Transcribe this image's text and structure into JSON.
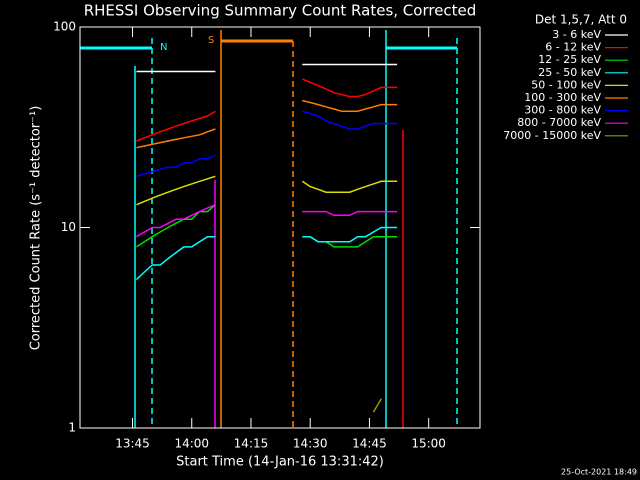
{
  "chart_data": {
    "type": "line",
    "title": "RHESSI Observing Summary Count Rates, Corrected",
    "x_label": "Start Time (14-Jan-16 13:31:42)",
    "y_label": "Corrected Count Rate (s⁻¹ detector⁻¹)",
    "legend_title": "Det 1,5,7, Att 0",
    "footer": "25-Oct-2021 18:49",
    "annotations": [
      "N",
      "S"
    ],
    "log_y": true,
    "xlim": [
      "13:31:42",
      "15:13"
    ],
    "xticks": [
      "13:45",
      "14:00",
      "14:15",
      "14:30",
      "14:45",
      "15:00"
    ],
    "ylim": [
      1,
      100
    ],
    "yticks": [
      1,
      10,
      100
    ],
    "x": [
      "13:46",
      "13:48",
      "13:50",
      "13:52",
      "13:54",
      "13:56",
      "13:58",
      "14:00",
      "14:02",
      "14:04",
      "14:06",
      "14:16",
      "14:28",
      "14:30",
      "14:32",
      "14:34",
      "14:36",
      "14:38",
      "14:40",
      "14:42",
      "14:44",
      "14:46",
      "14:48",
      "14:50",
      "14:52"
    ],
    "series": [
      {
        "name": "3 - 6 keV",
        "color": "#ffffff",
        "values": [
          60,
          60,
          60,
          60,
          60,
          60,
          60,
          60,
          60,
          60,
          60,
          null,
          65,
          65,
          65,
          65,
          65,
          65,
          65,
          65,
          65,
          65,
          65,
          65,
          65
        ]
      },
      {
        "name": "6 - 12 keV",
        "color": "#ff0000",
        "values": [
          27,
          28,
          29,
          30,
          31,
          32,
          33,
          34,
          35,
          36,
          38,
          null,
          55,
          53,
          51,
          49,
          47,
          46,
          45,
          45,
          46,
          48,
          50,
          50,
          50
        ]
      },
      {
        "name": "12 - 25 keV",
        "color": "#00dd00",
        "values": [
          8,
          8.5,
          9,
          9.5,
          10,
          10.5,
          11,
          11,
          12,
          12,
          13,
          null,
          9,
          9,
          8.5,
          8.5,
          8,
          8,
          8,
          8,
          8.5,
          9,
          9,
          9,
          9
        ]
      },
      {
        "name": "25 - 50 keV",
        "color": "#00ffff",
        "values": [
          5.5,
          6,
          6.5,
          6.5,
          7,
          7.5,
          8,
          8,
          8.5,
          9,
          9,
          null,
          9,
          9,
          8.5,
          8.5,
          8.5,
          8.5,
          8.5,
          9,
          9,
          9.5,
          10,
          10,
          10
        ]
      },
      {
        "name": "50 - 100 keV",
        "color": "#dddd00",
        "values": [
          13,
          13.5,
          14,
          14.5,
          15,
          15.5,
          16,
          16.5,
          17,
          17.5,
          18,
          null,
          17,
          16,
          15.5,
          15,
          15,
          15,
          15,
          15.5,
          16,
          16.5,
          17,
          17,
          17
        ]
      },
      {
        "name": "100 - 300 keV",
        "color": "#ff8000",
        "values": [
          25,
          25.5,
          26,
          26.5,
          27,
          27.5,
          28,
          28.5,
          29,
          30,
          31,
          null,
          43,
          42,
          41,
          40,
          39,
          38,
          38,
          38,
          39,
          40,
          41,
          41,
          41
        ]
      },
      {
        "name": "300 - 800 keV",
        "color": "#0000ff",
        "values": [
          18,
          18.5,
          19,
          19.5,
          20,
          20,
          21,
          21,
          22,
          22,
          23,
          null,
          38,
          37,
          36,
          34,
          33,
          32,
          31,
          31,
          32,
          33,
          33,
          33,
          33
        ]
      },
      {
        "name": "800 - 7000 keV",
        "color": "#ff00ff",
        "values": [
          9,
          9.5,
          10,
          10,
          10.5,
          11,
          11,
          11.5,
          12,
          12.5,
          13,
          null,
          12,
          12,
          12,
          12,
          11.5,
          11.5,
          11.5,
          12,
          12,
          12,
          12,
          12,
          12
        ]
      },
      {
        "name": "7000 - 15000 keV",
        "color": "#999900",
        "values": [
          null,
          null,
          null,
          null,
          null,
          null,
          null,
          null,
          null,
          null,
          null,
          null,
          null,
          null,
          null,
          null,
          null,
          null,
          null,
          null,
          null,
          1.2,
          1.4,
          null,
          null
        ]
      }
    ]
  }
}
